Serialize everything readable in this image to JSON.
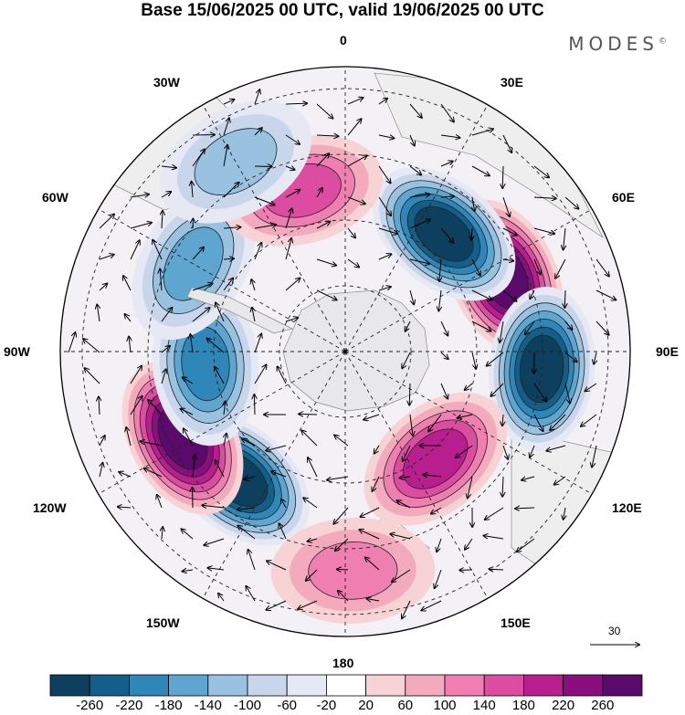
{
  "title": "Base 15/06/2025 00 UTC, valid 19/06/2025 00 UTC",
  "brand": "MODES",
  "brand_mark": "©",
  "longitude_labels": {
    "lon_0": "0",
    "lon_30e": "30E",
    "lon_60e": "60E",
    "lon_90e": "90E",
    "lon_120e": "120E",
    "lon_150e": "150E",
    "lon_180": "180",
    "lon_150w": "150W",
    "lon_120w": "120W",
    "lon_90w": "90W",
    "lon_60w": "60W",
    "lon_30w": "30W"
  },
  "reference_vector": "30",
  "colorbar": {
    "colors": [
      "#0d3f5e",
      "#145f8a",
      "#2f86b8",
      "#5ea5d0",
      "#98c2e0",
      "#c8d6ec",
      "#e6e8f4",
      "#ffffff",
      "#f8d3d6",
      "#f4aabd",
      "#ee7fb0",
      "#dc4ca0",
      "#b81e8e",
      "#8a0f7e",
      "#5a0a6a"
    ],
    "labels": [
      "-260",
      "-220",
      "-180",
      "-140",
      "-100",
      "-60",
      "-20",
      "20",
      "60",
      "100",
      "140",
      "180",
      "220",
      "260"
    ]
  },
  "anomaly_centers": [
    {
      "lon": -140,
      "lat": -52,
      "value": -270
    },
    {
      "lon": -118,
      "lat": -48,
      "value": 260
    },
    {
      "lon": 65,
      "lat": -50,
      "value": 270
    },
    {
      "lon": 40,
      "lat": -55,
      "value": -250
    },
    {
      "lon": 95,
      "lat": -45,
      "value": -240
    },
    {
      "lon": 140,
      "lat": -58,
      "value": 180
    },
    {
      "lon": -95,
      "lat": -58,
      "value": -170
    },
    {
      "lon": -60,
      "lat": -50,
      "value": -120
    },
    {
      "lon": -15,
      "lat": -52,
      "value": 120
    },
    {
      "lon": 178,
      "lat": -40,
      "value": 100
    },
    {
      "lon": -30,
      "lat": -40,
      "value": -90
    }
  ]
}
